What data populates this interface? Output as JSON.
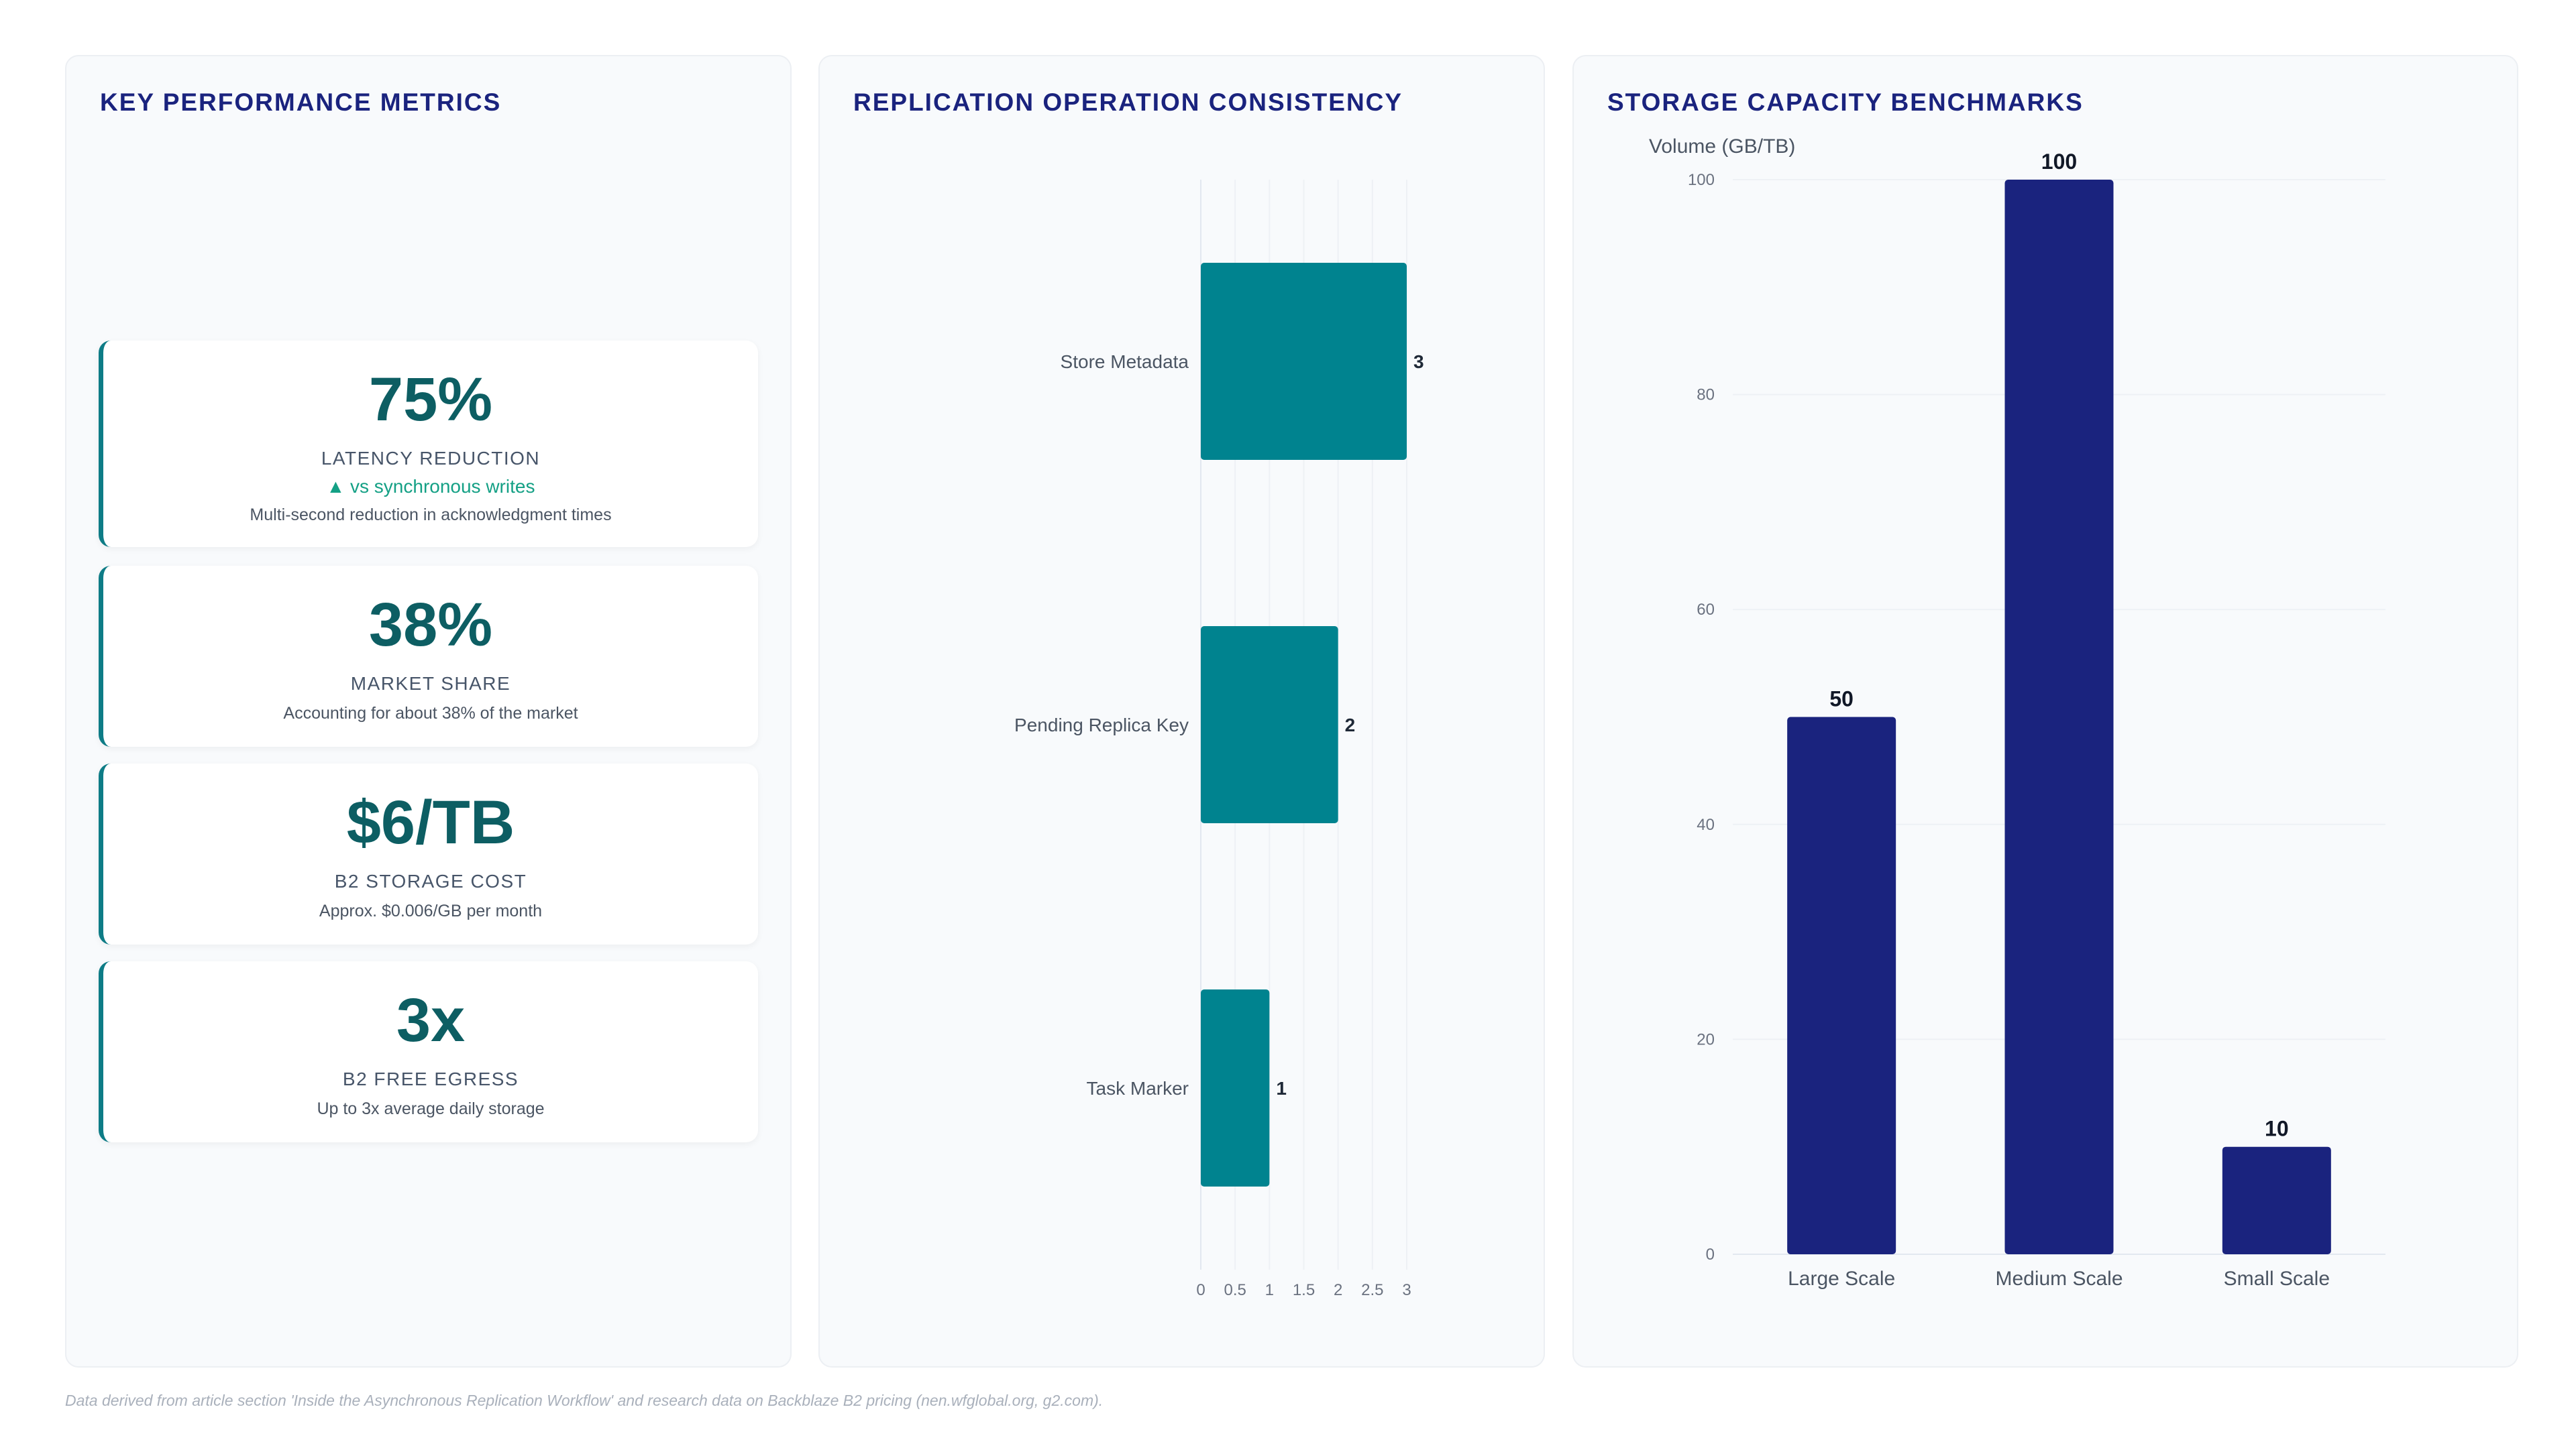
{
  "kpi_panel": {
    "title": "KEY PERFORMANCE METRICS",
    "cards": [
      {
        "value": "75%",
        "label": "LATENCY REDUCTION",
        "trend": "▲ vs synchronous writes",
        "desc": "Multi-second reduction in acknowledgment times"
      },
      {
        "value": "38%",
        "label": "MARKET SHARE",
        "desc": "Accounting for about 38% of the market"
      },
      {
        "value": "$6/TB",
        "label": "B2 STORAGE COST",
        "desc": "Approx. $0.006/GB per month"
      },
      {
        "value": "3x",
        "label": "B2 FREE EGRESS",
        "desc": "Up to 3x average daily storage"
      }
    ]
  },
  "replication_panel": {
    "title": "REPLICATION OPERATION CONSISTENCY"
  },
  "storage_panel": {
    "title": "STORAGE CAPACITY BENCHMARKS"
  },
  "colors": {
    "teal": "#00838f",
    "navy": "#1a237e",
    "accent_green": "#14a085"
  },
  "chart_data": [
    {
      "type": "bar",
      "orientation": "horizontal",
      "title": "REPLICATION OPERATION CONSISTENCY",
      "categories": [
        "Store Metadata",
        "Pending Replica Key",
        "Task Marker"
      ],
      "values": [
        3,
        2,
        1
      ],
      "data_labels": [
        "3",
        "2",
        "1"
      ],
      "x_ticks": [
        "0",
        "0.5",
        "1",
        "1.5",
        "2",
        "2.5",
        "3"
      ],
      "xlim": [
        0,
        3
      ],
      "grid": true,
      "color": "#00838f"
    },
    {
      "type": "bar",
      "title": "STORAGE CAPACITY BENCHMARKS",
      "ylabel": "Volume (GB/TB)",
      "categories": [
        "Large Scale",
        "Medium Scale",
        "Small Scale"
      ],
      "values": [
        50,
        100,
        10
      ],
      "data_labels": [
        "50",
        "100",
        "10"
      ],
      "y_ticks": [
        "0",
        "20",
        "40",
        "60",
        "80",
        "100"
      ],
      "ylim": [
        0,
        100
      ],
      "grid": true,
      "color": "#1a237e"
    }
  ],
  "footnote": "Data derived from article section 'Inside the Asynchronous Replication Workflow' and research data on Backblaze B2 pricing (nen.wfglobal.org, g2.com)."
}
